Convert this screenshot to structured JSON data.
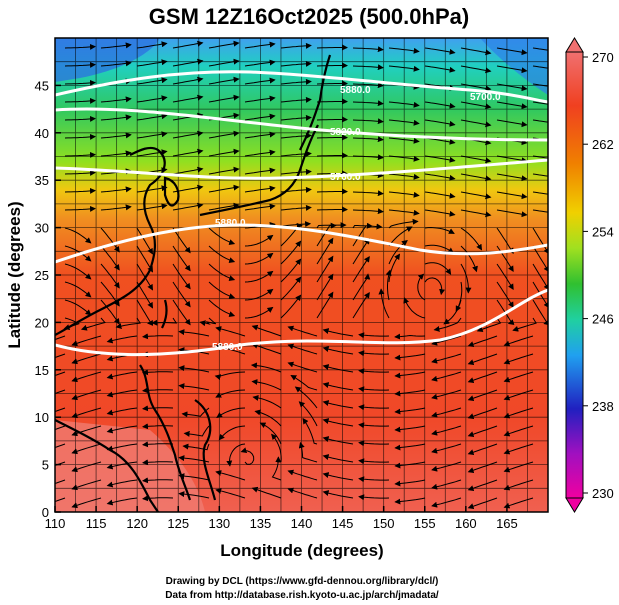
{
  "title": "GSM 12Z16Oct2025 (500.0hPa)",
  "x_axis": {
    "label": "Longitude (degrees)",
    "ticks": [
      "110",
      "115",
      "120",
      "125",
      "130",
      "135",
      "140",
      "145",
      "150",
      "155",
      "160",
      "165"
    ],
    "range": [
      110,
      170
    ]
  },
  "y_axis": {
    "label": "Latitude  (degrees)",
    "ticks": [
      "0",
      "5",
      "10",
      "15",
      "20",
      "25",
      "30",
      "35",
      "40",
      "45"
    ],
    "range": [
      0,
      50
    ]
  },
  "colorbar": {
    "labels": [
      "270",
      "262",
      "254",
      "246",
      "238",
      "230"
    ],
    "range": [
      230,
      270
    ],
    "colors": [
      "#f000a0",
      "#2020c0",
      "#20a0f0",
      "#20d0a0",
      "#30c030",
      "#a0e020",
      "#f0d000",
      "#f08000",
      "#f04020",
      "#f07070"
    ]
  },
  "contours": [
    {
      "label": "5880.0"
    },
    {
      "label": "5700.0"
    },
    {
      "label": "5820.0"
    },
    {
      "label": "5760.0"
    },
    {
      "label": "5880.0"
    },
    {
      "label": "5880.0"
    }
  ],
  "credits": {
    "line1": "Drawing by DCL (https://www.gfd-dennou.org/library/dcl/)",
    "line2": "Data from http://database.rish.kyoto-u.ac.jp/arch/jmadata/"
  }
}
